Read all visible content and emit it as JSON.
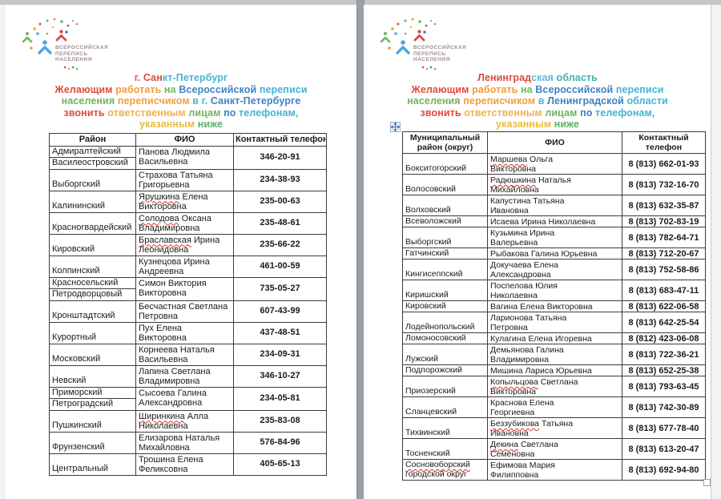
{
  "logo": {
    "name": "census-logo",
    "lines": [
      "ВСЕРОССИЙСКАЯ",
      "ПЕРЕПИСЬ",
      "НАСЕЛЕНИЯ"
    ]
  },
  "colors": {
    "brand_red": "#de4a3e",
    "brand_orange": "#f09d3a",
    "brand_amber": "#e5bd3f",
    "brand_green": "#6fb45c",
    "brand_blue": "#3e82c4",
    "brand_teal": "#41b4d2",
    "misspell_red": "#d93025"
  },
  "pages": [
    {
      "region": "г. Санкт-Петербург",
      "title_lines": [
        [
          {
            "t": "г. ",
            "c": "#e0623c"
          },
          {
            "t": "Сан",
            "c": "#de4a3e"
          },
          {
            "t": "кт-Петербург",
            "c": "#49b3d6"
          }
        ],
        [
          {
            "t": "Желающим ",
            "c": "#de4a3e"
          },
          {
            "t": "работать ",
            "c": "#f09d3a"
          },
          {
            "t": "на ",
            "c": "#6fb45c"
          },
          {
            "t": "Всероссийской ",
            "c": "#3e82c4"
          },
          {
            "t": "переписи",
            "c": "#41b4d2"
          }
        ],
        [
          {
            "t": "населения ",
            "c": "#6fb45c"
          },
          {
            "t": "переписчиком ",
            "c": "#f0a03c"
          },
          {
            "t": "в г. ",
            "c": "#49b3d6"
          },
          {
            "t": "Санкт-Петербурге",
            "c": "#3e82c4"
          }
        ],
        [
          {
            "t": "звонить ",
            "c": "#de4a3e"
          },
          {
            "t": "ответственным ",
            "c": "#f2b04e"
          },
          {
            "t": "лицам ",
            "c": "#6fb45c"
          },
          {
            "t": "по ",
            "c": "#3e82c4"
          },
          {
            "t": "телефонам,",
            "c": "#41b4d2"
          }
        ],
        [
          {
            "t": "указанным ",
            "c": "#e5bd3f"
          },
          {
            "t": "ниже",
            "c": "#5cb167"
          }
        ]
      ],
      "table": {
        "headers": [
          "Район",
          "ФИО",
          "Контактный телефон"
        ],
        "rows": [
          {
            "districts": [
              {
                "lines": [
                  "Адмиралтейский"
                ]
              },
              {
                "lines": [
                  "Василеостровский"
                ]
              }
            ],
            "name_lines": [
              "Панова Людмила",
              "Васильевна"
            ],
            "phone": "346-20-91"
          },
          {
            "districts": [
              {
                "lines": [
                  "Выборгский"
                ]
              }
            ],
            "name_lines": [
              "Страхова Татьяна",
              "Григорьевна"
            ],
            "phone": "234-38-93"
          },
          {
            "districts": [
              {
                "lines": [
                  "Калининский"
                ]
              }
            ],
            "name_lines": [
              "Ярушкина Елена",
              "Викторовна"
            ],
            "misspelled": "Ярушкина",
            "phone": "235-00-63"
          },
          {
            "districts": [
              {
                "lines": [
                  "Красногвардейский"
                ]
              }
            ],
            "name_lines": [
              "Солодова Оксана",
              "Владимировна"
            ],
            "misspelled": "Солодова",
            "phone": "235-48-61"
          },
          {
            "districts": [
              {
                "lines": [
                  "Кировский"
                ]
              }
            ],
            "name_lines": [
              "Браславская Ирина",
              "Леонидовна"
            ],
            "misspelled": "Браславская",
            "phone": "235-66-22"
          },
          {
            "districts": [
              {
                "lines": [
                  "Колпинский"
                ]
              }
            ],
            "name_lines": [
              "Кузнецова Ирина",
              "Андреевна"
            ],
            "phone": "461-00-59"
          },
          {
            "districts": [
              {
                "lines": [
                  "Красносельский"
                ]
              },
              {
                "lines": [
                  "Петродворцовый"
                ]
              }
            ],
            "name_lines": [
              "Симон Виктория",
              "Викторовна"
            ],
            "phone": "735-05-27"
          },
          {
            "districts": [
              {
                "lines": [
                  "Кронштадтский"
                ]
              }
            ],
            "name_lines": [
              "Бесчастная Светлана",
              "Петровна"
            ],
            "phone": "607-43-99"
          },
          {
            "districts": [
              {
                "lines": [
                  "Курортный"
                ]
              }
            ],
            "name_lines": [
              "Пух Елена Викторовна"
            ],
            "phone": "437-48-51"
          },
          {
            "districts": [
              {
                "lines": [
                  "Московский"
                ]
              }
            ],
            "name_lines": [
              "Корнеева Наталья",
              "Васильевна"
            ],
            "phone": "234-09-31"
          },
          {
            "districts": [
              {
                "lines": [
                  "Невский"
                ]
              }
            ],
            "name_lines": [
              "Лапина Светлана",
              "Владимировна"
            ],
            "phone": "346-10-27"
          },
          {
            "districts": [
              {
                "lines": [
                  "Приморский"
                ]
              },
              {
                "lines": [
                  "Петроградский"
                ]
              }
            ],
            "name_lines": [
              "Сысоева Галина",
              "Александровна"
            ],
            "phone": "234-05-81"
          },
          {
            "districts": [
              {
                "lines": [
                  "Пушкинский"
                ]
              }
            ],
            "name_lines": [
              "Ширинкина Алла",
              "Николаевна"
            ],
            "misspelled": "Ширинкина",
            "phone": "235-83-08"
          },
          {
            "districts": [
              {
                "lines": [
                  "Фрунзенский"
                ]
              }
            ],
            "name_lines": [
              "Елизарова Наталья",
              "Михайловна"
            ],
            "phone": "576-84-96"
          },
          {
            "districts": [
              {
                "lines": [
                  "Центральный"
                ]
              }
            ],
            "name_lines": [
              "Трошина Елена",
              "Феликсовна"
            ],
            "phone": "405-65-13"
          }
        ]
      },
      "handles": {
        "move": false,
        "resize": false
      }
    },
    {
      "region": "Ленинградская область",
      "title_lines": [
        [
          {
            "t": "Ленинград",
            "c": "#de4a3e"
          },
          {
            "t": "ская ",
            "c": "#5fb9da"
          },
          {
            "t": "область",
            "c": "#3fb3b0"
          }
        ],
        [
          {
            "t": "Желающим ",
            "c": "#de4a3e"
          },
          {
            "t": "работать ",
            "c": "#f09d3a"
          },
          {
            "t": "на ",
            "c": "#6fb45c"
          },
          {
            "t": "Всероссийской ",
            "c": "#3e82c4"
          },
          {
            "t": "переписи",
            "c": "#41b4d2"
          }
        ],
        [
          {
            "t": "населения ",
            "c": "#6fb45c"
          },
          {
            "t": "переписчиком ",
            "c": "#f0a03c"
          },
          {
            "t": "в ",
            "c": "#49b3d6"
          },
          {
            "t": "Ленинградской ",
            "c": "#3e82c4"
          },
          {
            "t": "области",
            "c": "#41b4d2"
          }
        ],
        [
          {
            "t": "звонить ",
            "c": "#de4a3e"
          },
          {
            "t": "ответственным ",
            "c": "#f2b04e"
          },
          {
            "t": "лицам ",
            "c": "#6fb45c"
          },
          {
            "t": "по ",
            "c": "#3e82c4"
          },
          {
            "t": "телефонам,",
            "c": "#41b4d2"
          }
        ],
        [
          {
            "t": "указанным ",
            "c": "#e5bd3f"
          },
          {
            "t": "ниже",
            "c": "#5cb167"
          }
        ]
      ],
      "table": {
        "headers": [
          "Муниципальный район (округ)",
          "ФИО",
          "Контактный телефон"
        ],
        "rows": [
          {
            "districts": [
              {
                "lines": [
                  "Бокситогорский"
                ]
              }
            ],
            "name_lines": [
              "Маршева Ольга",
              "Викторовна"
            ],
            "misspelled": "Маршева",
            "phone": "8 (813) 662-01-93"
          },
          {
            "districts": [
              {
                "lines": [
                  "Волосовский"
                ]
              }
            ],
            "name_lines": [
              "Радюшкина Наталья",
              "Михайловна"
            ],
            "misspelled": "Радюшкина",
            "phone": "8 (813) 732-16-70"
          },
          {
            "districts": [
              {
                "lines": [
                  "Волховский"
                ]
              }
            ],
            "name_lines": [
              "Капустина Татьяна",
              "Ивановна"
            ],
            "phone": "8 (813) 632-35-87"
          },
          {
            "districts": [
              {
                "lines": [
                  "Всеволожский"
                ]
              }
            ],
            "name_lines": [
              "Исаева Ирина Николаевна"
            ],
            "phone": "8 (813) 702-83-19"
          },
          {
            "districts": [
              {
                "lines": [
                  "Выборгский"
                ]
              }
            ],
            "name_lines": [
              "Кузьмина Ирина",
              "Валерьевна"
            ],
            "phone": "8 (813) 782-64-71"
          },
          {
            "districts": [
              {
                "lines": [
                  "Гатчинский"
                ]
              }
            ],
            "name_lines": [
              "Рыбакова Галина Юрьевна"
            ],
            "phone": "8 (813) 712-20-67"
          },
          {
            "districts": [
              {
                "lines": [
                  "Кингисеппский"
                ]
              }
            ],
            "name_lines": [
              "Докучаева Елена",
              "Александровна"
            ],
            "phone": "8 (813) 752-58-86"
          },
          {
            "districts": [
              {
                "lines": [
                  "Киришский"
                ]
              }
            ],
            "name_lines": [
              "Поспелова Юлия",
              "Николаевна"
            ],
            "phone": "8 (813) 683-47-11"
          },
          {
            "districts": [
              {
                "lines": [
                  "Кировский"
                ]
              }
            ],
            "name_lines": [
              "Вагина Елена Викторовна"
            ],
            "phone": "8 (813) 622-06-58"
          },
          {
            "districts": [
              {
                "lines": [
                  "Лодейнопольский"
                ]
              }
            ],
            "name_lines": [
              "Ларионова Татьяна",
              "Петровна"
            ],
            "phone": "8 (813) 642-25-54"
          },
          {
            "districts": [
              {
                "lines": [
                  "Ломоносовский"
                ]
              }
            ],
            "name_lines": [
              "Кулагина Елена Игоревна"
            ],
            "phone": "8 (812) 423-06-08"
          },
          {
            "districts": [
              {
                "lines": [
                  "Лужский"
                ]
              }
            ],
            "name_lines": [
              "Демьянова Галина",
              "Владимировна"
            ],
            "phone": "8 (813) 722-36-21"
          },
          {
            "districts": [
              {
                "lines": [
                  "Подпорожский"
                ]
              }
            ],
            "name_lines": [
              "Мишина Лариса Юрьевна"
            ],
            "phone": "8 (813) 652-25-38"
          },
          {
            "districts": [
              {
                "lines": [
                  "Приозерский"
                ]
              }
            ],
            "name_lines": [
              "Копыльцова Светлана",
              "Викторовна"
            ],
            "misspelled": "Копыльцова",
            "phone": "8 (813) 793-63-45"
          },
          {
            "districts": [
              {
                "lines": [
                  "Сланцевский"
                ]
              }
            ],
            "name_lines": [
              "Краснова Елена",
              "Георгиевна"
            ],
            "phone": "8 (813) 742-30-89"
          },
          {
            "districts": [
              {
                "lines": [
                  "Тихвинский"
                ]
              }
            ],
            "name_lines": [
              "Беззубикова Татьяна",
              "Ивановна"
            ],
            "misspelled": "Беззубикова",
            "phone": "8 (813) 677-78-40"
          },
          {
            "districts": [
              {
                "lines": [
                  "Тосненский"
                ]
              }
            ],
            "name_lines": [
              "Декина Светлана",
              "Семеновна"
            ],
            "misspelled": "Декина",
            "phone": "8 (813) 613-20-47"
          },
          {
            "districts": [
              {
                "lines": [
                  "Сосновоборский",
                  "городской округ"
                ],
                "misspelled": "Сосновоборский"
              }
            ],
            "name_lines": [
              "Ефимова Мария",
              "Филипповна"
            ],
            "phone": "8 (813) 692-94-80"
          }
        ]
      },
      "handles": {
        "move": true,
        "resize": true
      }
    }
  ]
}
